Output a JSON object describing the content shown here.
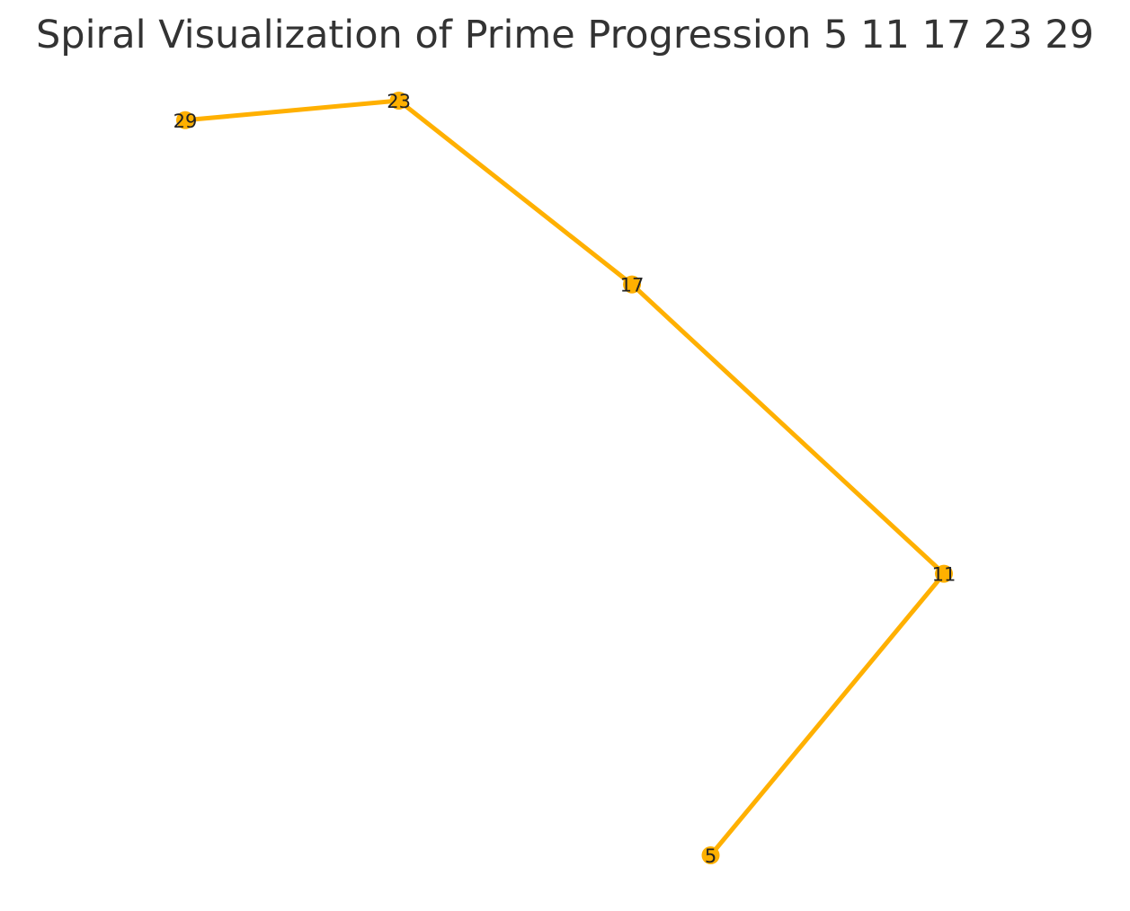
{
  "chart_data": {
    "type": "line",
    "title": "Spiral Visualization of Prime Progression 5 11 17 23 29",
    "xlabel": "",
    "ylabel": "",
    "grid": false,
    "axes_visible": false,
    "x": [
      0.28,
      1.11,
      0.0,
      -0.83,
      -1.59
    ],
    "y": [
      -1.59,
      -0.87,
      -0.13,
      0.34,
      0.29
    ],
    "point_labels": [
      "5",
      "11",
      "17",
      "23",
      "29"
    ],
    "xlim": [
      -1.59,
      1.11
    ],
    "ylim": [
      -1.59,
      0.34
    ],
    "series": [
      {
        "values": [
          5,
          11,
          17,
          23,
          29
        ],
        "color": "#FFB000"
      }
    ]
  }
}
